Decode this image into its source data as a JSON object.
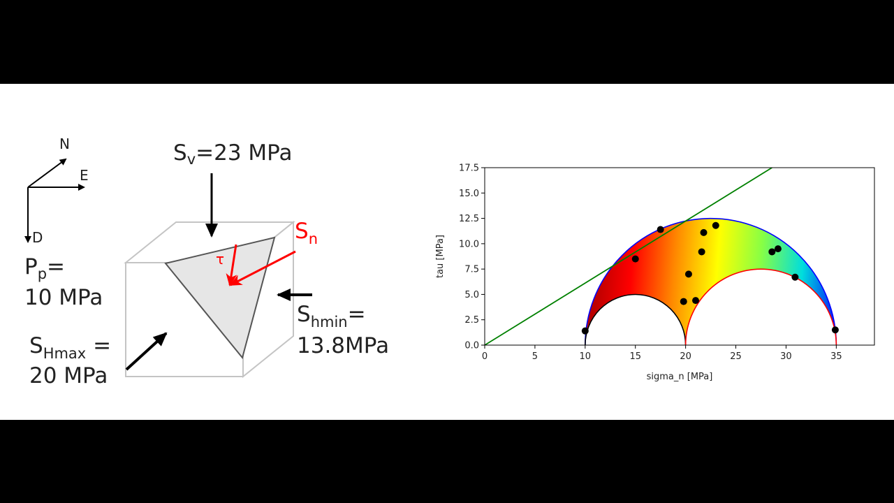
{
  "diagram": {
    "compass": {
      "north": "N",
      "east": "E",
      "down": "D"
    },
    "sv": {
      "symbol": "S",
      "sub": "v",
      "value": "=23 MPa"
    },
    "pp": {
      "symbol": "P",
      "sub": "p",
      "eq": "=",
      "value": "10 MPa"
    },
    "shmax": {
      "symbol": "S",
      "sub": "Hmax",
      "eq": " =",
      "value": "20 MPa"
    },
    "shmin": {
      "symbol": "S",
      "sub": "hmin",
      "eq": "=",
      "value": "13.8MPa"
    },
    "sn": {
      "symbol": "S",
      "sub": "n"
    },
    "tau": "τ",
    "colors": {
      "normal_stress": "#ff0000",
      "arrow": "#000000",
      "plane_fill": "#e6e6e6"
    }
  },
  "chart_data": {
    "type": "scatter",
    "title": "",
    "xlabel": "sigma_n [MPa]",
    "ylabel": "tau [MPa]",
    "xlim": [
      0,
      38.8
    ],
    "ylim": [
      0,
      17.5
    ],
    "xticks": [
      "0",
      "5",
      "10",
      "15",
      "20",
      "25",
      "30",
      "35"
    ],
    "yticks": [
      "0.0",
      "2.5",
      "5.0",
      "7.5",
      "10.0",
      "12.5",
      "15.0",
      "17.5"
    ],
    "grid": false,
    "legend": "none",
    "mohr_circles": [
      {
        "center": 22.5,
        "radius": 12.5,
        "color": "#0000ff"
      },
      {
        "center": 15.0,
        "radius": 5.0,
        "color": "#000000"
      },
      {
        "center": 27.5,
        "radius": 7.5,
        "color": "#ff0000"
      }
    ],
    "failure_line": {
      "x": [
        0,
        28.6
      ],
      "y": [
        0,
        17.5
      ],
      "color": "#008000"
    },
    "points": {
      "x": [
        10.0,
        15.0,
        17.5,
        19.8,
        20.3,
        21.0,
        21.6,
        21.8,
        23.0,
        28.6,
        29.2,
        30.9,
        34.9
      ],
      "y": [
        1.4,
        8.5,
        11.4,
        4.3,
        7.0,
        4.4,
        9.2,
        11.1,
        11.8,
        9.2,
        9.5,
        6.7,
        1.5
      ],
      "color": "#000000"
    },
    "fill_gradient": [
      "#aa0000",
      "#ff0000",
      "#ff8800",
      "#ffff00",
      "#88ff44",
      "#00dddd",
      "#0000ff"
    ]
  }
}
